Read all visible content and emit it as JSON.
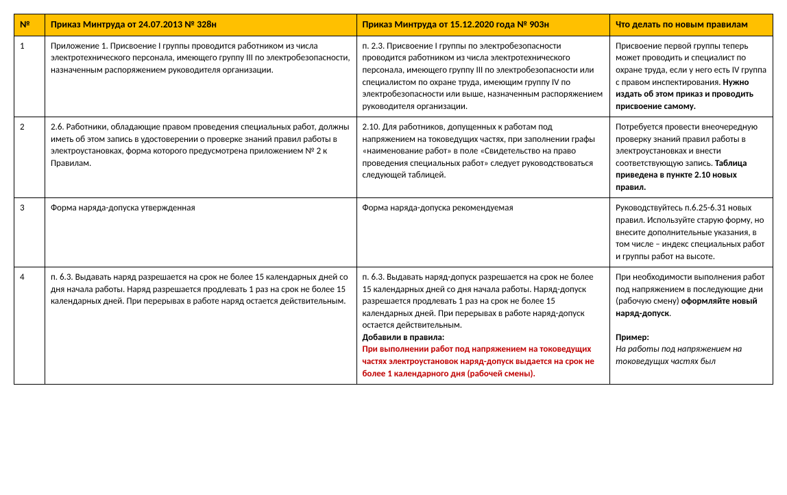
{
  "table": {
    "header": {
      "bg_color": "#ffc000",
      "font_size": 14,
      "columns": [
        {
          "id": "num",
          "label": "№"
        },
        {
          "id": "old",
          "label": "Приказ Минтруда от 24.07.2013 № 328н"
        },
        {
          "id": "new",
          "label": "Приказ Минтруда от 15.12.2020 года № 903н"
        },
        {
          "id": "action",
          "label": "Что делать по новым правилам"
        }
      ]
    },
    "rows": [
      {
        "num": "1",
        "old": "Приложение 1. Присвоение I группы проводится работником из числа электротехнического персонала, имеющего группу III по электробезопасности, назначенным распоряжением руководителя организации.",
        "new": "п. 2.3. Присвоение I группы по электробезопасности проводится работником из числа электротехнического персонала, имеющего группу III по электробезопасности или специалистом по охране труда, имеющим группу IV по электробезопасности или выше, назначенным распоряжением руководителя организации.",
        "action_parts": [
          {
            "text": "Присвоение первой группы теперь может проводить и специалист по охране труда, если у него есть IV группа с правом инспектирования. ",
            "style": ""
          },
          {
            "text": "Нужно издать об этом приказ и проводить присвоение самому.",
            "style": "bold"
          }
        ]
      },
      {
        "num": "2",
        "old": "2.6. Работники, обладающие правом проведения специальных работ, должны иметь об этом запись в удостоверении о проверке знаний правил работы в электроустановках, форма которого предусмотрена приложением № 2 к Правилам.",
        "new": "2.10. Для работников, допущенных к работам под напряжением на токоведущих частях, при заполнении графы «наименование работ» в поле «Свидетельство на право проведения специальных работ» следует руководствоваться следующей таблицей.",
        "action_parts": [
          {
            "text": "Потребуется провести внеочередную проверку знаний правил работы в электроустановках и внести соответствующую запись. ",
            "style": ""
          },
          {
            "text": "Таблица приведена в пункте 2.10 новых правил.",
            "style": "bold"
          }
        ]
      },
      {
        "num": "3",
        "old": "Форма наряда-допуска утвержденная",
        "new": "Форма наряда-допуска рекомендуемая",
        "action_parts": [
          {
            "text": "Руководствуйтесь п.6.25-6.31 новых правил. Используйте старую форму, но внесите дополнительные указания, в том числе – индекс специальных работ и группы работ на высоте.",
            "style": ""
          }
        ]
      },
      {
        "num": "4",
        "old": "п. 6.3. Выдавать наряд разрешается на срок не более 15 календарных дней со дня начала работы. Наряд разрешается продлевать 1 раз на срок не более 15 календарных дней. При перерывах в работе наряд остается действительным.",
        "new_parts": [
          {
            "text": "п. 6.3. Выдавать наряд-допуск разрешается на срок не более 15 календарных дней со дня начала работы. Наряд-допуск разрешается продлевать 1 раз на срок не более 15 календарных дней. При перерывах в работе наряд-допуск остается действительным.",
            "style": ""
          },
          {
            "text": "\nДобавили в правила:",
            "style": "bold"
          },
          {
            "text": "\nПри выполнении работ под напряжением на токоведущих частях электроустановок наряд-допуск выдается на срок не более 1 календарного дня (рабочей смены).",
            "style": "bold red"
          }
        ],
        "action_parts": [
          {
            "text": "При необходимости выполнения работ под напряжением в последующие дни (рабочую смену) ",
            "style": ""
          },
          {
            "text": "оформляйте новый наряд-допуск",
            "style": "bold"
          },
          {
            "text": ".\n\n",
            "style": ""
          },
          {
            "text": "Пример:",
            "style": "bold"
          },
          {
            "text": "\n",
            "style": ""
          },
          {
            "text": "На работы под напряжением на токоведущих частях был",
            "style": "italic"
          }
        ]
      }
    ]
  }
}
